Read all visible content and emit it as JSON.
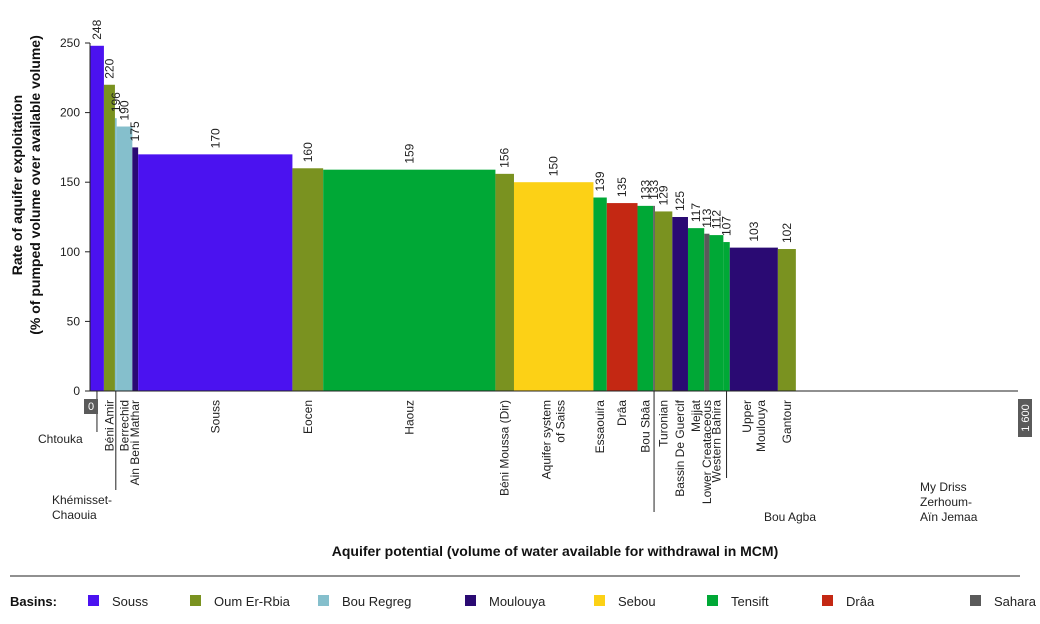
{
  "chart_data": {
    "type": "bar",
    "variable_width": true,
    "xlabel": "Aquifer potential (volume of water available for withdrawal in MCM)",
    "ylabel_line1": "Rate of aquifer exploitation",
    "ylabel_line2": "(% of pumped volume over available volume)",
    "ylim": [
      0,
      250
    ],
    "yticks": [
      "0",
      "50",
      "100",
      "150",
      "200",
      "250"
    ],
    "xlim": [
      0,
      1600
    ],
    "x_start_label": "0",
    "x_end_label": "1 600",
    "legend_title": "Basins:",
    "legend": [
      {
        "name": "Souss",
        "color": "#4b12f0"
      },
      {
        "name": "Oum Er-Rbia",
        "color": "#7a9220"
      },
      {
        "name": "Bou Regreg",
        "color": "#85bfcc"
      },
      {
        "name": "Moulouya",
        "color": "#2a0a73"
      },
      {
        "name": "Sebou",
        "color": "#fcd116"
      },
      {
        "name": "Tensift",
        "color": "#00a836"
      },
      {
        "name": "Drâa",
        "color": "#c42813"
      },
      {
        "name": "Sahara",
        "color": "#5a5a5a"
      }
    ],
    "bars": [
      {
        "name": "Chtouka",
        "value": 248,
        "basin": "Souss",
        "x0": 0,
        "x1": 24
      },
      {
        "name": "Béni Amir",
        "value": 220,
        "basin": "Oum Er-Rbia",
        "x0": 24,
        "x1": 43
      },
      {
        "name": "Khémisset-Chaouia",
        "value": 196,
        "basin": "Bou Regreg",
        "x0": 43,
        "x1": 46
      },
      {
        "name": "Berrechid",
        "value": 190,
        "basin": "Bou Regreg",
        "x0": 46,
        "x1": 73
      },
      {
        "name": "Ain Beni Mathar",
        "value": 175,
        "basin": "Moulouya",
        "x0": 73,
        "x1": 83
      },
      {
        "name": "Souss",
        "value": 170,
        "basin": "Souss",
        "x0": 83,
        "x1": 349
      },
      {
        "name": "Eocen",
        "value": 160,
        "basin": "Oum Er-Rbia",
        "x0": 349,
        "x1": 402
      },
      {
        "name": "Haouz",
        "value": 159,
        "basin": "Tensift",
        "x0": 402,
        "x1": 699
      },
      {
        "name": "Béni Moussa (Dir)",
        "value": 156,
        "basin": "Oum Er-Rbia",
        "x0": 699,
        "x1": 731
      },
      {
        "name": "Aquifer system of Saiss",
        "value": 150,
        "basin": "Sebou",
        "x0": 731,
        "x1": 868
      },
      {
        "name": "Essaouira",
        "value": 139,
        "basin": "Tensift",
        "x0": 868,
        "x1": 891
      },
      {
        "name": "Drâa",
        "value": 135,
        "basin": "Drâa",
        "x0": 891,
        "x1": 944
      },
      {
        "name": "Bou Sbâa",
        "value": 133,
        "basin": "Tensift",
        "x0": 944,
        "x1": 971
      },
      {
        "name": "Bou Agba",
        "value": 133,
        "basin": "Sahara",
        "x0": 971,
        "x1": 974
      },
      {
        "name": "Turonian",
        "value": 129,
        "basin": "Oum Er-Rbia",
        "x0": 974,
        "x1": 1004
      },
      {
        "name": "Bassin De Guercif",
        "value": 125,
        "basin": "Moulouya",
        "x0": 1004,
        "x1": 1031
      },
      {
        "name": "Mejjat",
        "value": 117,
        "basin": "Tensift",
        "x0": 1031,
        "x1": 1059
      },
      {
        "name": "Lower Creataceous",
        "value": 113,
        "basin": "Sahara",
        "x0": 1059,
        "x1": 1068
      },
      {
        "name": "Western Bahira",
        "value": 112,
        "basin": "Tensift",
        "x0": 1068,
        "x1": 1092
      },
      {
        "name": "My Driss Zerhoum-Aïn Jemaa",
        "value": 107,
        "basin": "Tensift",
        "x0": 1092,
        "x1": 1103
      },
      {
        "name": "Upper Moulouya",
        "value": 103,
        "basin": "Moulouya",
        "x0": 1103,
        "x1": 1186
      },
      {
        "name": "Gantour",
        "value": 102,
        "basin": "Oum Er-Rbia",
        "x0": 1186,
        "x1": 1217
      }
    ]
  }
}
